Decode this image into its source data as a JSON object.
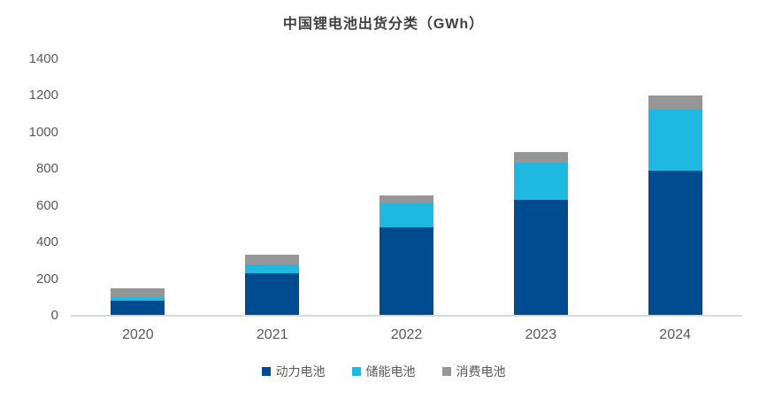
{
  "chart_data": {
    "type": "bar",
    "stacked": true,
    "title": "中国锂电池出货分类（GWh）",
    "categories": [
      "2020",
      "2021",
      "2022",
      "2023",
      "2024"
    ],
    "series": [
      {
        "name": "动力电池",
        "color": "#004B8F",
        "values": [
          75,
          226,
          480,
          628,
          785
        ]
      },
      {
        "name": "储能电池",
        "color": "#1FB8E0",
        "values": [
          18,
          48,
          128,
          205,
          335
        ]
      },
      {
        "name": "消费电池",
        "color": "#969696",
        "values": [
          47,
          52,
          45,
          57,
          75
        ]
      }
    ],
    "totals": [
      140,
      326,
      653,
      890,
      1195
    ],
    "xlabel": "",
    "ylabel": "",
    "ylim": [
      0,
      1400
    ],
    "yticks": [
      0,
      200,
      400,
      600,
      800,
      1000,
      1200,
      1400
    ],
    "grid": false,
    "legend_position": "bottom",
    "axis_line_color": "#d9d9d9",
    "text_color": "#595959"
  }
}
